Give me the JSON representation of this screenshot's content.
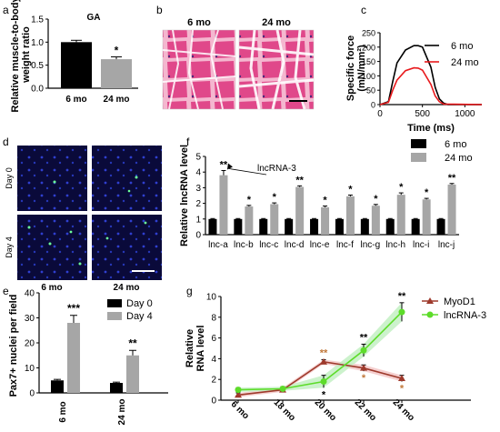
{
  "panels": {
    "a": {
      "label": "a"
    },
    "b": {
      "label": "b",
      "left_caption": "6 mo",
      "right_caption": "24 mo"
    },
    "c": {
      "label": "c"
    },
    "d": {
      "label": "d",
      "row_labels": [
        "Day 0",
        "Day 4"
      ],
      "col_labels": [
        "6 mo",
        "24 mo"
      ]
    },
    "e": {
      "label": "e"
    },
    "f": {
      "label": "f"
    },
    "g": {
      "label": "g"
    }
  },
  "colors": {
    "black": "#000000",
    "gray": "#a6a6a6",
    "red": "#e8191c",
    "brown": "#9e3a2c",
    "green": "#5ddc2a",
    "ribbon_red": "#f3c4c4",
    "ribbon_green": "#bfefbf",
    "he_background": "#f2a6c4",
    "he_fiber": "#e0488a",
    "dapi_background": "#0a0a3a"
  },
  "chart_data": [
    {
      "id": "a",
      "type": "bar",
      "title": "GA",
      "ylabel": "Relative muscle-to-body weight ratio",
      "ylabel_lines": [
        "Relative muscle-to-body",
        "weight ratio"
      ],
      "categories": [
        "6 mo",
        "24 mo"
      ],
      "values": [
        1.0,
        0.63
      ],
      "errors": [
        0.04,
        0.05
      ],
      "bar_colors": [
        "#000000",
        "#a6a6a6"
      ],
      "ylim": [
        0,
        1.5
      ],
      "yticks": [
        "0.0",
        "0.5",
        "1.0",
        "1.5"
      ],
      "annotations": [
        "",
        "*"
      ]
    },
    {
      "id": "c",
      "type": "line",
      "ylabel": "Specific force (mN/mm²)",
      "ylabel_lines": [
        "Specific force",
        "(mN/mm²)"
      ],
      "xlabel": "Time (ms)",
      "xlim": [
        0,
        1200
      ],
      "ylim": [
        0,
        250
      ],
      "xticks": [
        "0",
        "500",
        "1000"
      ],
      "yticks": [
        "0",
        "50",
        "100",
        "150",
        "200",
        "250"
      ],
      "baseline_dotted": 0,
      "series": [
        {
          "name": "6 mo",
          "color": "#000000",
          "x": [
            0,
            100,
            150,
            200,
            300,
            400,
            450,
            500,
            600,
            650,
            700,
            750,
            800,
            1200
          ],
          "y": [
            0,
            10,
            80,
            145,
            190,
            205,
            205,
            200,
            130,
            60,
            20,
            5,
            0,
            0
          ]
        },
        {
          "name": "24 mo",
          "color": "#e8191c",
          "x": [
            0,
            100,
            150,
            200,
            300,
            400,
            450,
            500,
            600,
            650,
            700,
            750,
            1200
          ],
          "y": [
            0,
            8,
            50,
            85,
            118,
            128,
            127,
            120,
            70,
            30,
            10,
            2,
            0
          ]
        }
      ]
    },
    {
      "id": "e",
      "type": "bar",
      "ylabel": "Pax7+ nuclei per field",
      "categories": [
        "6 mo",
        "24 mo"
      ],
      "series": [
        {
          "name": "Day 0",
          "color": "#000000",
          "values": [
            5,
            4
          ],
          "errors": [
            0.4,
            0.3
          ]
        },
        {
          "name": "Day 4",
          "color": "#a6a6a6",
          "values": [
            28,
            15
          ],
          "errors": [
            3,
            2
          ]
        }
      ],
      "ylim": [
        0,
        40
      ],
      "yticks": [
        "0",
        "10",
        "20",
        "30",
        "40"
      ],
      "annotations": [
        "***",
        "**"
      ]
    },
    {
      "id": "f",
      "type": "bar",
      "ylabel": "Relative lncRNA level",
      "categories": [
        "lnc-a",
        "lnc-b",
        "lnc-c",
        "lnc-d",
        "lnc-e",
        "lnc-f",
        "lnc-g",
        "lnc-h",
        "lnc-i",
        "lnc-j"
      ],
      "series": [
        {
          "name": "6 mo",
          "color": "#000000",
          "values": [
            1,
            1,
            1,
            1,
            1,
            1,
            1,
            1,
            1,
            1
          ],
          "errors": [
            0.03,
            0.03,
            0.03,
            0.03,
            0.03,
            0.03,
            0.03,
            0.03,
            0.03,
            0.03
          ]
        },
        {
          "name": "24 mo",
          "color": "#a6a6a6",
          "values": [
            3.8,
            1.8,
            1.95,
            3.05,
            1.75,
            2.45,
            1.85,
            2.55,
            2.25,
            3.2
          ],
          "errors": [
            0.3,
            0.07,
            0.08,
            0.07,
            0.08,
            0.08,
            0.08,
            0.12,
            0.07,
            0.07
          ]
        }
      ],
      "ylim": [
        0,
        5
      ],
      "yticks": [
        "0",
        "1",
        "2",
        "3",
        "4",
        "5"
      ],
      "annotations": [
        "**",
        "*",
        "*",
        "**",
        "*",
        "*",
        "*",
        "*",
        "*",
        "**"
      ],
      "callout": "lncRNA-3",
      "callout_index": 0
    },
    {
      "id": "g",
      "type": "line",
      "ylabel": "Relative RNA level",
      "ylabel_lines": [
        "Relative",
        "RNA level"
      ],
      "categories": [
        "6 mo",
        "18 mo",
        "20 mo",
        "22 mo",
        "24 mo"
      ],
      "ylim": [
        0,
        10
      ],
      "yticks": [
        "0",
        "2",
        "4",
        "6",
        "8",
        "10"
      ],
      "series": [
        {
          "name": "MyoD1",
          "color": "#9e3a2c",
          "marker": "triangle",
          "values": [
            0.5,
            1.0,
            3.7,
            3.1,
            2.1
          ],
          "errors": [
            0.2,
            0.2,
            0.2,
            0.3,
            0.3
          ],
          "annotations": [
            "",
            "",
            "**",
            "*",
            "*"
          ]
        },
        {
          "name": "lncRNA-3",
          "color": "#5ddc2a",
          "marker": "circle",
          "values": [
            1.0,
            1.1,
            1.8,
            4.8,
            8.5
          ],
          "errors": [
            0.2,
            0.2,
            0.6,
            0.6,
            0.9
          ],
          "annotations": [
            "",
            "",
            "*",
            "**",
            "**"
          ]
        }
      ]
    }
  ]
}
